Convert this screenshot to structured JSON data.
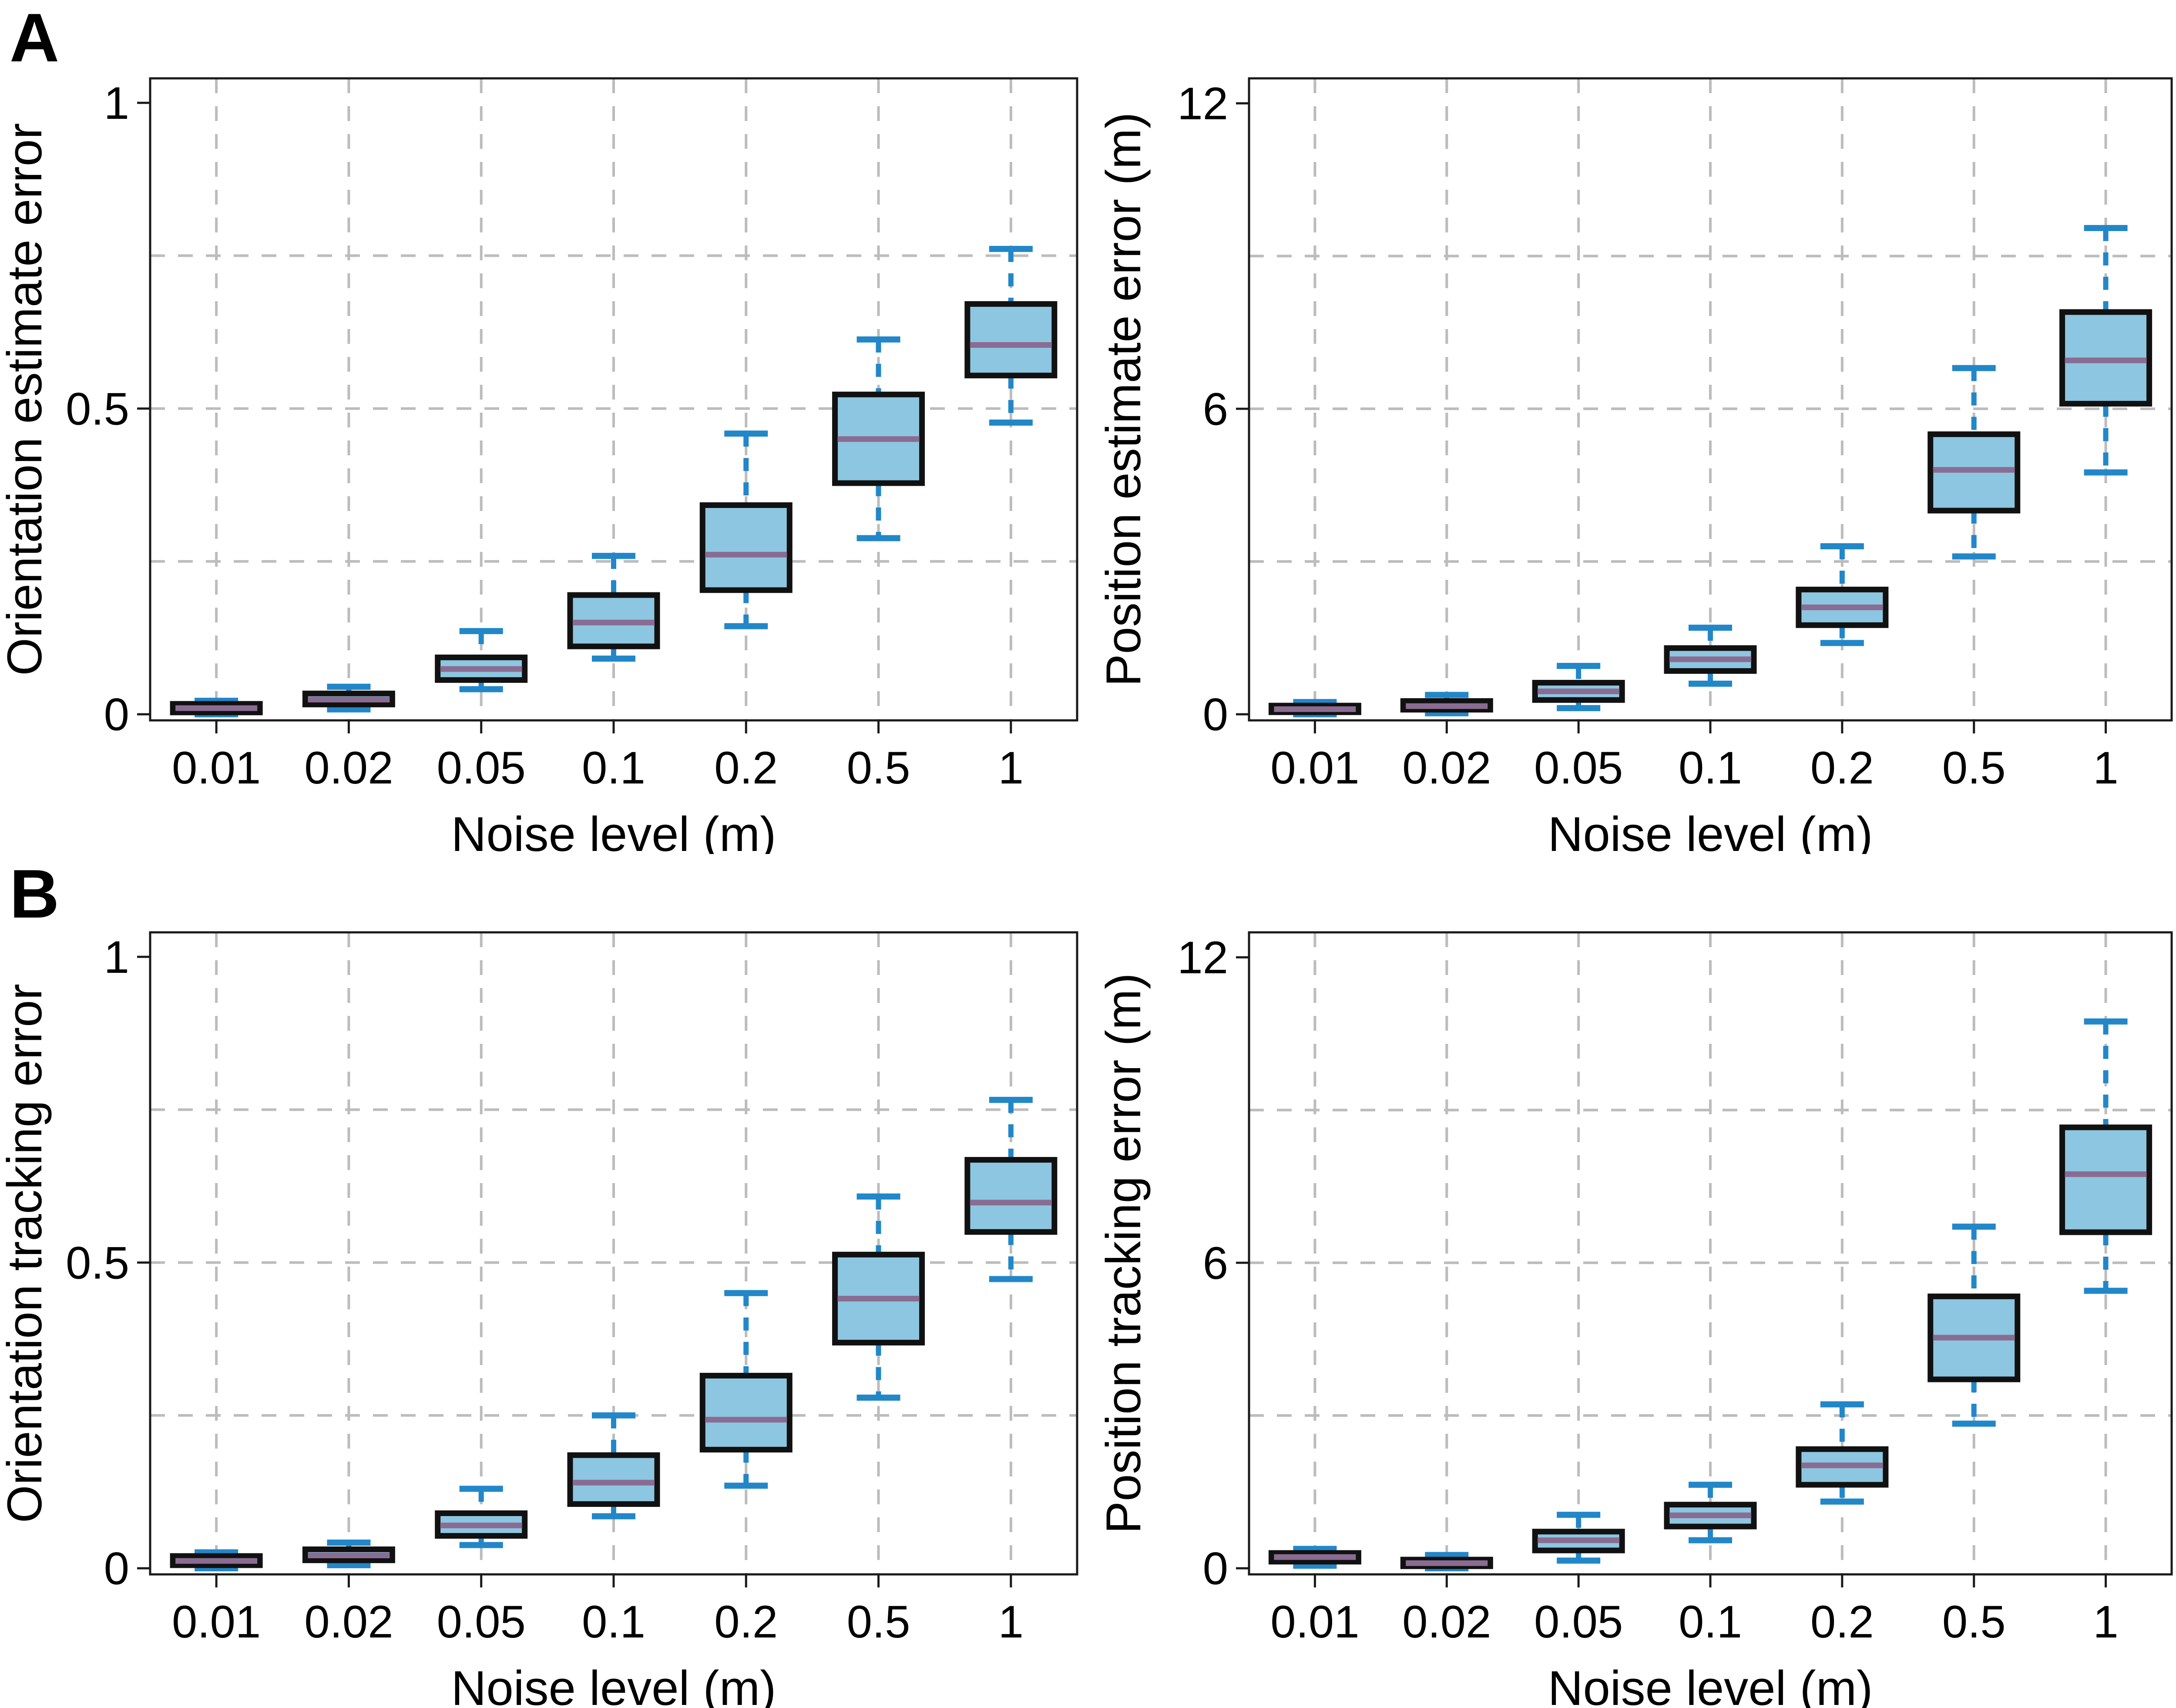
{
  "figure": {
    "background": "#ffffff",
    "panel_letters": [
      {
        "letter": "A"
      },
      {
        "letter": "B"
      }
    ]
  },
  "style": {
    "box_fill": "#8cc6e0",
    "box_edge": "#111111",
    "median_color": "#8a6c92",
    "whisker_color": "#2287c8",
    "grid_color": "#bcbcbc",
    "axis_color": "#1a1a1a",
    "text_color": "#000000"
  },
  "chart_data": [
    {
      "type": "box",
      "panel": "A",
      "position": "top-left",
      "ylabel": "Orientation estimate error",
      "xlabel": "Noise level (m)",
      "categories": [
        "0.01",
        "0.02",
        "0.05",
        "0.1",
        "0.2",
        "0.5",
        "1"
      ],
      "ylim": [
        -0.01,
        1.04
      ],
      "yticks": [
        {
          "v": 0,
          "label": "0"
        },
        {
          "v": 0.5,
          "label": "0.5"
        },
        {
          "v": 1,
          "label": "1"
        }
      ],
      "grid_y": [
        0.25,
        0.5,
        0.75
      ],
      "grid_x_on": true,
      "boxes": [
        {
          "category": "0.01",
          "lo": 0.0,
          "q1": 0.003,
          "med": 0.01,
          "q3": 0.017,
          "hi": 0.022
        },
        {
          "category": "0.02",
          "lo": 0.008,
          "q1": 0.016,
          "med": 0.024,
          "q3": 0.034,
          "hi": 0.045
        },
        {
          "category": "0.05",
          "lo": 0.041,
          "q1": 0.056,
          "med": 0.074,
          "q3": 0.093,
          "hi": 0.136
        },
        {
          "category": "0.1",
          "lo": 0.091,
          "q1": 0.111,
          "med": 0.15,
          "q3": 0.195,
          "hi": 0.259
        },
        {
          "category": "0.2",
          "lo": 0.144,
          "q1": 0.203,
          "med": 0.261,
          "q3": 0.342,
          "hi": 0.459
        },
        {
          "category": "0.5",
          "lo": 0.288,
          "q1": 0.378,
          "med": 0.45,
          "q3": 0.523,
          "hi": 0.613
        },
        {
          "category": "1",
          "lo": 0.477,
          "q1": 0.554,
          "med": 0.604,
          "q3": 0.671,
          "hi": 0.761
        }
      ]
    },
    {
      "type": "box",
      "panel": "A",
      "position": "top-right",
      "ylabel": "Position estimate error (m)",
      "xlabel": "Noise level (m)",
      "categories": [
        "0.01",
        "0.02",
        "0.05",
        "0.1",
        "0.2",
        "0.5",
        "1"
      ],
      "ylim": [
        -0.12,
        12.49
      ],
      "yticks": [
        {
          "v": 0,
          "label": "0"
        },
        {
          "v": 6,
          "label": "6"
        },
        {
          "v": 12,
          "label": "12"
        }
      ],
      "grid_y": [
        3,
        6,
        9
      ],
      "grid_x_on": true,
      "boxes": [
        {
          "category": "0.01",
          "lo": 0.0,
          "q1": 0.04,
          "med": 0.1,
          "q3": 0.17,
          "hi": 0.24
        },
        {
          "category": "0.02",
          "lo": 0.02,
          "q1": 0.09,
          "med": 0.16,
          "q3": 0.26,
          "hi": 0.38
        },
        {
          "category": "0.05",
          "lo": 0.12,
          "q1": 0.28,
          "med": 0.45,
          "q3": 0.62,
          "hi": 0.95
        },
        {
          "category": "0.1",
          "lo": 0.6,
          "q1": 0.85,
          "med": 1.08,
          "q3": 1.3,
          "hi": 1.7
        },
        {
          "category": "0.2",
          "lo": 1.4,
          "q1": 1.75,
          "med": 2.1,
          "q3": 2.45,
          "hi": 3.3
        },
        {
          "category": "0.5",
          "lo": 3.1,
          "q1": 4.0,
          "med": 4.8,
          "q3": 5.5,
          "hi": 6.8
        },
        {
          "category": "1",
          "lo": 4.75,
          "q1": 6.1,
          "med": 6.95,
          "q3": 7.9,
          "hi": 9.55
        }
      ]
    },
    {
      "type": "box",
      "panel": "B",
      "position": "bottom-left",
      "ylabel": "Orientation tracking error",
      "xlabel": "Noise level (m)",
      "categories": [
        "0.01",
        "0.02",
        "0.05",
        "0.1",
        "0.2",
        "0.5",
        "1"
      ],
      "ylim": [
        -0.01,
        1.04
      ],
      "yticks": [
        {
          "v": 0,
          "label": "0"
        },
        {
          "v": 0.5,
          "label": "0.5"
        },
        {
          "v": 1,
          "label": "1"
        }
      ],
      "grid_y": [
        0.25,
        0.5,
        0.75
      ],
      "grid_x_on": true,
      "boxes": [
        {
          "category": "0.01",
          "lo": 0.0,
          "q1": 0.005,
          "med": 0.012,
          "q3": 0.02,
          "hi": 0.026
        },
        {
          "category": "0.02",
          "lo": 0.005,
          "q1": 0.013,
          "med": 0.021,
          "q3": 0.031,
          "hi": 0.042
        },
        {
          "category": "0.05",
          "lo": 0.038,
          "q1": 0.053,
          "med": 0.07,
          "q3": 0.09,
          "hi": 0.13
        },
        {
          "category": "0.1",
          "lo": 0.085,
          "q1": 0.105,
          "med": 0.14,
          "q3": 0.185,
          "hi": 0.25
        },
        {
          "category": "0.2",
          "lo": 0.135,
          "q1": 0.194,
          "med": 0.243,
          "q3": 0.315,
          "hi": 0.45
        },
        {
          "category": "0.5",
          "lo": 0.279,
          "q1": 0.369,
          "med": 0.441,
          "q3": 0.513,
          "hi": 0.608
        },
        {
          "category": "1",
          "lo": 0.473,
          "q1": 0.55,
          "med": 0.598,
          "q3": 0.668,
          "hi": 0.766
        }
      ]
    },
    {
      "type": "box",
      "panel": "B",
      "position": "bottom-right",
      "ylabel": "Position tracking error (m)",
      "xlabel": "Noise level (m)",
      "categories": [
        "0.01",
        "0.02",
        "0.05",
        "0.1",
        "0.2",
        "0.5",
        "1"
      ],
      "ylim": [
        -0.12,
        12.49
      ],
      "yticks": [
        {
          "v": 0,
          "label": "0"
        },
        {
          "v": 6,
          "label": "6"
        },
        {
          "v": 12,
          "label": "12"
        }
      ],
      "grid_y": [
        3,
        6,
        9
      ],
      "grid_x_on": true,
      "boxes": [
        {
          "category": "0.01",
          "lo": 0.05,
          "q1": 0.13,
          "med": 0.22,
          "q3": 0.3,
          "hi": 0.38
        },
        {
          "category": "0.02",
          "lo": 0.0,
          "q1": 0.04,
          "med": 0.1,
          "q3": 0.17,
          "hi": 0.26
        },
        {
          "category": "0.05",
          "lo": 0.15,
          "q1": 0.35,
          "med": 0.55,
          "q3": 0.72,
          "hi": 1.05
        },
        {
          "category": "0.1",
          "lo": 0.55,
          "q1": 0.82,
          "med": 1.04,
          "q3": 1.25,
          "hi": 1.64
        },
        {
          "category": "0.2",
          "lo": 1.31,
          "q1": 1.64,
          "med": 2.02,
          "q3": 2.34,
          "hi": 3.22
        },
        {
          "category": "0.5",
          "lo": 2.84,
          "q1": 3.71,
          "med": 4.53,
          "q3": 5.34,
          "hi": 6.71
        },
        {
          "category": "1",
          "lo": 5.45,
          "q1": 6.6,
          "med": 7.74,
          "q3": 8.66,
          "hi": 10.74
        }
      ]
    }
  ]
}
